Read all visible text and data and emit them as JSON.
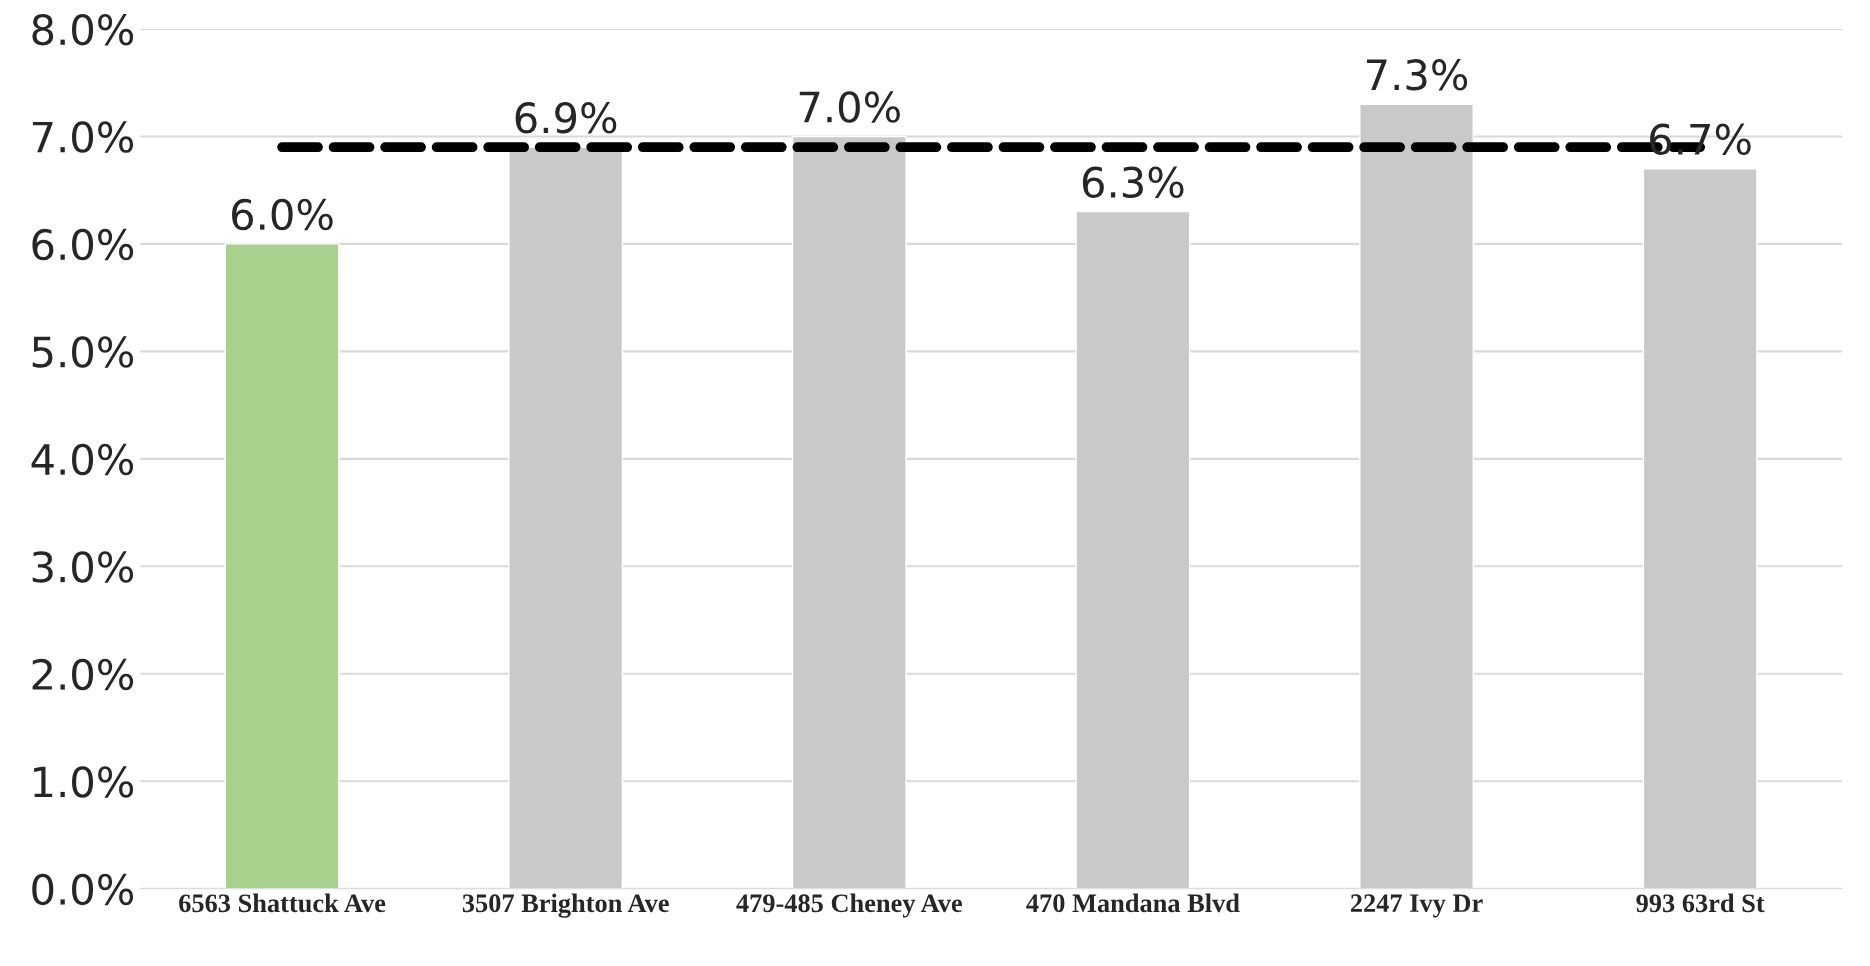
{
  "chart_data": {
    "type": "bar",
    "categories": [
      "6563 Shattuck Ave",
      "3507 Brighton Ave",
      "479-485 Cheney Ave",
      "470 Mandana Blvd",
      "2247 Ivy Dr",
      "993 63rd St"
    ],
    "series": [
      {
        "type": "bar",
        "colors": [
          "#a9d18e",
          "#c9c9c9",
          "#c9c9c9",
          "#c9c9c9",
          "#c9c9c9",
          "#c9c9c9"
        ],
        "values": [
          6.0,
          6.9,
          7.0,
          6.3,
          7.3,
          6.7
        ],
        "value_labels": [
          "6.0%",
          "6.9%",
          "7.0%",
          "6.3%",
          "7.3%",
          "6.7%"
        ]
      },
      {
        "type": "line",
        "color": "#000000",
        "line_style": "dashed",
        "values": [
          6.9,
          6.9,
          6.9,
          6.9,
          6.9,
          6.9
        ]
      }
    ],
    "ylim": [
      0,
      8
    ],
    "yticks": [
      {
        "value": 0,
        "label": "0.0%"
      },
      {
        "value": 1,
        "label": "1.0%"
      },
      {
        "value": 2,
        "label": "2.0%"
      },
      {
        "value": 3,
        "label": "3.0%"
      },
      {
        "value": 4,
        "label": "4.0%"
      },
      {
        "value": 5,
        "label": "5.0%"
      },
      {
        "value": 6,
        "label": "6.0%"
      },
      {
        "value": 7,
        "label": "7.0%"
      },
      {
        "value": 8,
        "label": "8.0%"
      }
    ],
    "grid": "y",
    "legend": false
  }
}
